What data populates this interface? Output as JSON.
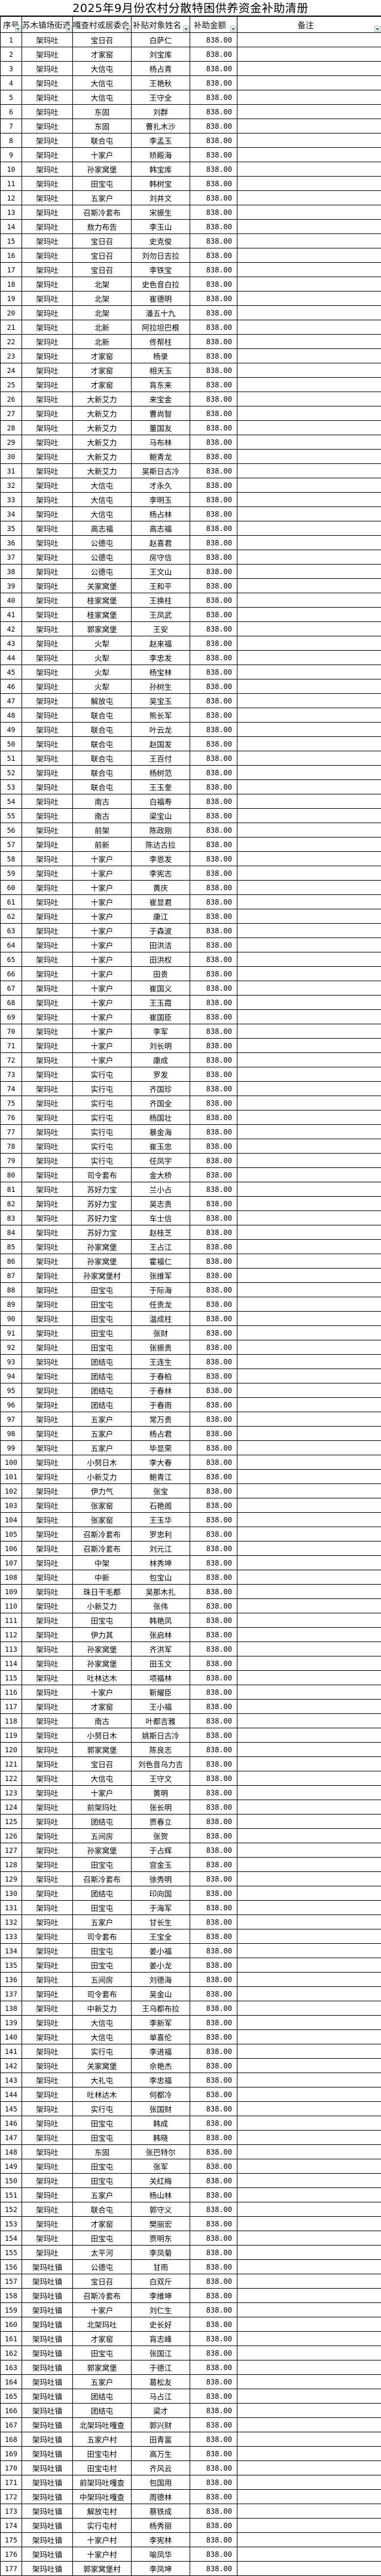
{
  "title": "2025年9月份农村分散特困供养资金补助清册",
  "columns": [
    "序号",
    "苏木镇场街道",
    "嘎查村或居委会",
    "补贴对象姓名",
    "补助金额",
    "备注"
  ],
  "amount": "838.00",
  "rows": [
    [
      "1",
      "架玛吐",
      "宝日召",
      "白萨仁"
    ],
    [
      "2",
      "架玛吐",
      "才家窑",
      "刘宝库"
    ],
    [
      "3",
      "架玛吐",
      "大信屯",
      "杨占青"
    ],
    [
      "4",
      "架玛吐",
      "大信屯",
      "王艳秋"
    ],
    [
      "5",
      "架玛吐",
      "大信屯",
      "王守全"
    ],
    [
      "6",
      "架玛吐",
      "东固",
      "刘群"
    ],
    [
      "7",
      "架玛吐",
      "东固",
      "曹扎木沙"
    ],
    [
      "8",
      "架玛吐",
      "联合屯",
      "李孟玉"
    ],
    [
      "9",
      "架玛吐",
      "十家户",
      "矫殿海"
    ],
    [
      "10",
      "架玛吐",
      "孙家窝堡",
      "韩宝库"
    ],
    [
      "11",
      "架玛吐",
      "田宝屯",
      "韩树宝"
    ],
    [
      "12",
      "架玛吐",
      "五家户",
      "刘井文"
    ],
    [
      "13",
      "架玛吐",
      "召斯冷套布",
      "宋振生"
    ],
    [
      "14",
      "架玛吐",
      "敖力布告",
      "李玉山"
    ],
    [
      "15",
      "架玛吐",
      "宝日召",
      "史克俊"
    ],
    [
      "16",
      "架玛吐",
      "宝日召",
      "刘勿日吉拉"
    ],
    [
      "17",
      "架玛吐",
      "宝日召",
      "李铁宝"
    ],
    [
      "18",
      "架玛吐",
      "北架",
      "史色音白拉"
    ],
    [
      "19",
      "架玛吐",
      "北架",
      "崔德明"
    ],
    [
      "20",
      "架玛吐",
      "北架",
      "潘五十九"
    ],
    [
      "21",
      "架玛吐",
      "北新",
      "阿拉坦巴根"
    ],
    [
      "22",
      "架玛吐",
      "北新",
      "佟帮柱"
    ],
    [
      "23",
      "架玛吐",
      "才家窑",
      "杨录"
    ],
    [
      "24",
      "架玛吐",
      "才家窑",
      "相天玉"
    ],
    [
      "25",
      "架玛吐",
      "才家窑",
      "肓东来"
    ],
    [
      "26",
      "架玛吐",
      "大新艾力",
      "来宝金"
    ],
    [
      "27",
      "架玛吐",
      "大新艾力",
      "曹尚智"
    ],
    [
      "28",
      "架玛吐",
      "大新艾力",
      "董国友"
    ],
    [
      "29",
      "架玛吐",
      "大新艾力",
      "马布林"
    ],
    [
      "30",
      "架玛吐",
      "大新艾力",
      "鲍青龙"
    ],
    [
      "31",
      "架玛吐",
      "大新艾力",
      "吴斯日古冷"
    ],
    [
      "32",
      "架玛吐",
      "大信屯",
      "才永久"
    ],
    [
      "33",
      "架玛吐",
      "大信屯",
      "李明玉"
    ],
    [
      "34",
      "架玛吐",
      "大信屯",
      "杨占林"
    ],
    [
      "35",
      "架玛吐",
      "高志福",
      "高志福"
    ],
    [
      "36",
      "架玛吐",
      "公德屯",
      "赵喜君"
    ],
    [
      "37",
      "架玛吐",
      "公德屯",
      "房守信"
    ],
    [
      "38",
      "架玛吐",
      "公德屯",
      "王文山"
    ],
    [
      "39",
      "架玛吐",
      "关家窝堡",
      "王和平"
    ],
    [
      "40",
      "架玛吐",
      "桂家窝堡",
      "王换柱"
    ],
    [
      "41",
      "架玛吐",
      "桂家窝堡",
      "王凤武"
    ],
    [
      "42",
      "架玛吐",
      "郭家窝堡",
      "王安"
    ],
    [
      "43",
      "架玛吐",
      "火犁",
      "赵来福"
    ],
    [
      "44",
      "架玛吐",
      "火犁",
      "李忠发"
    ],
    [
      "45",
      "架玛吐",
      "火犁",
      "杨宝林"
    ],
    [
      "46",
      "架玛吐",
      "火犁",
      "孙树生"
    ],
    [
      "47",
      "架玛吐",
      "解放屯",
      "吴宝玉"
    ],
    [
      "48",
      "架玛吐",
      "联合屯",
      "熊长军"
    ],
    [
      "49",
      "架玛吐",
      "联合屯",
      "叶云龙"
    ],
    [
      "50",
      "架玛吐",
      "联合屯",
      "赵国发"
    ],
    [
      "51",
      "架玛吐",
      "联合屯",
      "王百付"
    ],
    [
      "52",
      "架玛吐",
      "联合屯",
      "杨树范"
    ],
    [
      "53",
      "架玛吐",
      "联合屯",
      "王玉奎"
    ],
    [
      "54",
      "架玛吐",
      "南古",
      "白福寿"
    ],
    [
      "55",
      "架玛吐",
      "南古",
      "梁宝山"
    ],
    [
      "56",
      "架玛吐",
      "前架",
      "陈政刚"
    ],
    [
      "57",
      "架玛吐",
      "前新",
      "陈达古拉"
    ],
    [
      "58",
      "架玛吐",
      "十家户",
      "李恩发"
    ],
    [
      "59",
      "架玛吐",
      "十家户",
      "李宪志"
    ],
    [
      "60",
      "架玛吐",
      "十家户",
      "黄庆"
    ],
    [
      "61",
      "架玛吐",
      "十家户",
      "崔显君"
    ],
    [
      "62",
      "架玛吐",
      "十家户",
      "康江"
    ],
    [
      "63",
      "架玛吐",
      "十家户",
      "于森波"
    ],
    [
      "64",
      "架玛吐",
      "十家户",
      "田洪洁"
    ],
    [
      "65",
      "架玛吐",
      "十家户",
      "田洪权"
    ],
    [
      "66",
      "架玛吐",
      "十家户",
      "田贵"
    ],
    [
      "67",
      "架玛吐",
      "十家户",
      "崔国义"
    ],
    [
      "68",
      "架玛吐",
      "十家户",
      "王玉霞"
    ],
    [
      "69",
      "架玛吐",
      "十家户",
      "崔国臣"
    ],
    [
      "70",
      "架玛吐",
      "十家户",
      "李军"
    ],
    [
      "71",
      "架玛吐",
      "十家户",
      "刘长明"
    ],
    [
      "72",
      "架玛吐",
      "十家户",
      "康成"
    ],
    [
      "73",
      "架玛吐",
      "实行屯",
      "罗发"
    ],
    [
      "74",
      "架玛吐",
      "实行屯",
      "齐国珍"
    ],
    [
      "75",
      "架玛吐",
      "实行屯",
      "齐国全"
    ],
    [
      "76",
      "架玛吐",
      "实行屯",
      "杨国壮"
    ],
    [
      "77",
      "架玛吐",
      "实行屯",
      "暴金海"
    ],
    [
      "78",
      "架玛吐",
      "实行屯",
      "崔玉忠"
    ],
    [
      "79",
      "架玛吐",
      "实行屯",
      "任凤宇"
    ],
    [
      "80",
      "架玛吐",
      "司令套布",
      "金大桥"
    ],
    [
      "81",
      "架玛吐",
      "苏好力宝",
      "兰小占"
    ],
    [
      "82",
      "架玛吐",
      "苏好力宝",
      "吴志贵"
    ],
    [
      "83",
      "架玛吐",
      "苏好力宝",
      "车士信"
    ],
    [
      "84",
      "架玛吐",
      "苏好力宝",
      "赵桂芝"
    ],
    [
      "85",
      "架玛吐",
      "孙家窝堡",
      "王占江"
    ],
    [
      "86",
      "架玛吐",
      "孙家窝堡",
      "霍福仁"
    ],
    [
      "87",
      "架玛吐",
      "孙家窝堡村",
      "张维军"
    ],
    [
      "88",
      "架玛吐",
      "田宝屯",
      "于际海"
    ],
    [
      "89",
      "架玛吐",
      "田宝屯",
      "任贵龙"
    ],
    [
      "90",
      "架玛吐",
      "田宝屯",
      "温成柱"
    ],
    [
      "91",
      "架玛吐",
      "田宝屯",
      "张财"
    ],
    [
      "92",
      "架玛吐",
      "田宝屯",
      "张振贵"
    ],
    [
      "93",
      "架玛吐",
      "团结屯",
      "王连生"
    ],
    [
      "94",
      "架玛吐",
      "团结屯",
      "于春柏"
    ],
    [
      "95",
      "架玛吐",
      "团结屯",
      "于春林"
    ],
    [
      "96",
      "架玛吐",
      "团结屯",
      "于春雨"
    ],
    [
      "97",
      "架玛吐",
      "五家户",
      "常万贵"
    ],
    [
      "98",
      "架玛吐",
      "五家户",
      "杨占君"
    ],
    [
      "99",
      "架玛吐",
      "五家户",
      "毕显荣"
    ],
    [
      "100",
      "架玛吐",
      "小努日木",
      "李大春"
    ],
    [
      "101",
      "架玛吐",
      "小新艾力",
      "鲍青江"
    ],
    [
      "102",
      "架玛吐",
      "伊力气",
      "张宝"
    ],
    [
      "103",
      "架玛吐",
      "张家窑",
      "石艳阁"
    ],
    [
      "104",
      "架玛吐",
      "张家窑",
      "王玉华"
    ],
    [
      "105",
      "架玛吐",
      "召斯冷套布",
      "罗忠利"
    ],
    [
      "106",
      "架玛吐",
      "召斯冷套布",
      "刘元江"
    ],
    [
      "107",
      "架玛吐",
      "中架",
      "林秀坤"
    ],
    [
      "108",
      "架玛吐",
      "中新",
      "包宝山"
    ],
    [
      "109",
      "架玛吐",
      "珠日干毛都",
      "吴那木扎"
    ],
    [
      "110",
      "架玛吐",
      "小新艾力",
      "张伟"
    ],
    [
      "111",
      "架玛吐",
      "田宝屯",
      "韩艳凤"
    ],
    [
      "112",
      "架玛吐",
      "伊力其",
      "张启林"
    ],
    [
      "113",
      "架玛吐",
      "孙家窝堡",
      "齐洪军"
    ],
    [
      "114",
      "架玛吐",
      "孙家窝堡",
      "田玉文"
    ],
    [
      "115",
      "架玛吐",
      "吐林达木",
      "项福林"
    ],
    [
      "116",
      "架玛吐",
      "十家户",
      "靳耀臣"
    ],
    [
      "117",
      "架玛吐",
      "才家窑",
      "王小福"
    ],
    [
      "118",
      "架玛吐",
      "南古",
      "叶都吉雅"
    ],
    [
      "119",
      "架玛吐",
      "小努日木",
      "姚斯日古冷"
    ],
    [
      "120",
      "架玛吐",
      "郭家窝堡",
      "陈良志"
    ],
    [
      "121",
      "架玛吐",
      "宝日召",
      "刘色音乌力吉"
    ],
    [
      "122",
      "架玛吐",
      "大信屯",
      "王守文"
    ],
    [
      "123",
      "架玛吐",
      "十家户",
      "黄明"
    ],
    [
      "124",
      "架玛吐",
      "前架玛吐",
      "张长明"
    ],
    [
      "125",
      "架玛吐",
      "团结屯",
      "贾春立"
    ],
    [
      "126",
      "架玛吐",
      "五间房",
      "张贺"
    ],
    [
      "127",
      "架玛吐",
      "孙家窝堡",
      "于占辉"
    ],
    [
      "128",
      "架玛吐",
      "田宝屯",
      "宫金玉"
    ],
    [
      "129",
      "架玛吐",
      "召斯冷套布",
      "徐秀明"
    ],
    [
      "130",
      "架玛吐",
      "团结屯",
      "印向国"
    ],
    [
      "131",
      "架玛吐",
      "田宝屯",
      "于海军"
    ],
    [
      "132",
      "架玛吐",
      "五家户",
      "甘长生"
    ],
    [
      "133",
      "架玛吐",
      "司令套布",
      "王宝全"
    ],
    [
      "134",
      "架玛吐",
      "田宝屯",
      "姜小福"
    ],
    [
      "135",
      "架玛吐",
      "田宝屯",
      "姜小龙"
    ],
    [
      "136",
      "架玛吐",
      "五间房",
      "刘德海"
    ],
    [
      "137",
      "架玛吐",
      "司令套布",
      "吴金山"
    ],
    [
      "138",
      "架玛吐",
      "中新艾力",
      "王乌都布拉"
    ],
    [
      "139",
      "架玛吐",
      "大信屯",
      "李新军"
    ],
    [
      "140",
      "架玛吐",
      "大信屯",
      "单喜伦"
    ],
    [
      "141",
      "架玛吐",
      "实行屯",
      "李进福"
    ],
    [
      "142",
      "架玛吐",
      "关家窝堡",
      "佘艳杰"
    ],
    [
      "143",
      "架玛吐",
      "大礼屯",
      "李忠福"
    ],
    [
      "144",
      "架玛吐",
      "吐林达木",
      "何都冷"
    ],
    [
      "145",
      "架玛吐",
      "实行屯",
      "张国财"
    ],
    [
      "146",
      "架玛吐",
      "田宝屯",
      "韩成"
    ],
    [
      "147",
      "架玛吐",
      "田宝屯",
      "韩晓"
    ],
    [
      "148",
      "架玛吐",
      "东固",
      "张巴特尔"
    ],
    [
      "149",
      "架玛吐",
      "田宝屯",
      "张军"
    ],
    [
      "150",
      "架玛吐",
      "田宝屯",
      "关红梅"
    ],
    [
      "151",
      "架玛吐",
      "五家户",
      "杨山林"
    ],
    [
      "152",
      "架玛吐",
      "联合屯",
      "郭守义"
    ],
    [
      "153",
      "架玛吐",
      "才家窑",
      "樊丽宏"
    ],
    [
      "154",
      "架玛吐",
      "田宝屯",
      "贾明东"
    ],
    [
      "155",
      "架玛吐",
      "太平河",
      "李凤菊"
    ],
    [
      "156",
      "架玛吐镇",
      "公德屯",
      "甘雨"
    ],
    [
      "157",
      "架玛吐镇",
      "宝日召",
      "白双斤"
    ],
    [
      "158",
      "架玛吐镇",
      "召斯冷套布",
      "李维坤"
    ],
    [
      "159",
      "架玛吐镇",
      "十家户",
      "刘仁生"
    ],
    [
      "160",
      "架玛吐镇",
      "北架玛吐",
      "史长好"
    ],
    [
      "161",
      "架玛吐镇",
      "才家窑",
      "肓志峰"
    ],
    [
      "162",
      "架玛吐镇",
      "田宝屯",
      "张国江"
    ],
    [
      "163",
      "架玛吐镇",
      "郭家窝堡",
      "于德江"
    ],
    [
      "164",
      "架玛吐镇",
      "五家户",
      "葛松友"
    ],
    [
      "165",
      "架玛吐镇",
      "团结屯",
      "马占江"
    ],
    [
      "166",
      "架玛吐镇",
      "团结屯",
      "梁才"
    ],
    [
      "167",
      "架玛吐镇",
      "北架玛吐嘎查",
      "郭兴财"
    ],
    [
      "168",
      "架玛吐镇",
      "五家户村",
      "田青富"
    ],
    [
      "169",
      "架玛吐镇",
      "田宝屯村",
      "高万生"
    ],
    [
      "170",
      "架玛吐镇",
      "田宝屯村",
      "齐风云"
    ],
    [
      "171",
      "架玛吐镇",
      "前架玛吐嘎查",
      "包国用"
    ],
    [
      "172",
      "架玛吐镇",
      "中架玛吐嘎查",
      "周德林"
    ],
    [
      "173",
      "架玛吐镇",
      "解放屯村",
      "蔡铁成"
    ],
    [
      "174",
      "架玛吐镇",
      "实行屯村",
      "杨秀丽"
    ],
    [
      "175",
      "架玛吐镇",
      "十家户村",
      "李宪林"
    ],
    [
      "176",
      "架玛吐镇",
      "十家户村",
      "喻凤华"
    ],
    [
      "177",
      "架玛吐镇",
      "郭家窝堡村",
      "李凤坤"
    ]
  ],
  "colors": {
    "grid": "#000000",
    "filter_arrow": "#1a8a4a"
  }
}
